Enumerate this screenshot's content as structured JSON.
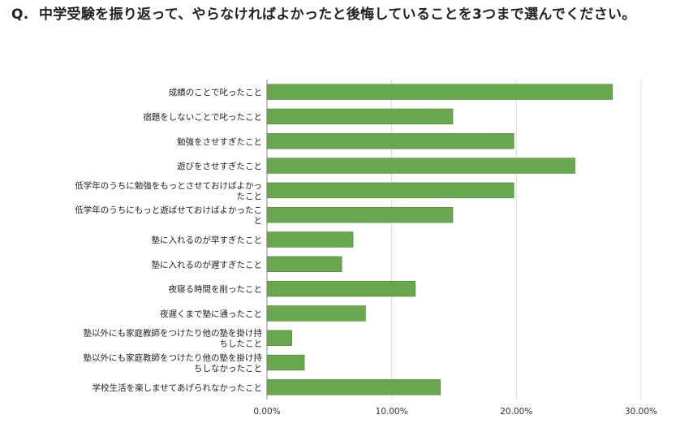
{
  "question": {
    "prefix": "Q.",
    "text": "中学受験を振り返って、やらなければよかったと後悔していることを3つまで選んでください。"
  },
  "chart_data": {
    "type": "bar",
    "orientation": "horizontal",
    "bar_color": "#6aa84f",
    "grid": true,
    "xlim": [
      0,
      0.3
    ],
    "x_ticks": [
      "0.00%",
      "10.00%",
      "20.00%",
      "30.00%"
    ],
    "categories": [
      [
        "成績のことで叱ったこと"
      ],
      [
        "宿題をしないことで叱ったこと"
      ],
      [
        "勉強をさせすぎたこと"
      ],
      [
        "遊びをさせすぎたこと"
      ],
      [
        "低学年のうちに勉強をもっとさせておけばよかっ",
        "たこと"
      ],
      [
        "低学年のうちにもっと遊ばせておけばよかったこ",
        "と"
      ],
      [
        "塾に入れるのが早すぎたこと"
      ],
      [
        "塾に入れるのが遅すぎたこと"
      ],
      [
        "夜寝る時間を削ったこと"
      ],
      [
        "夜遅くまで塾に通ったこと"
      ],
      [
        "塾以外にも家庭教師をつけたり他の塾を掛け持",
        "ちしたこと"
      ],
      [
        "塾以外にも家庭教師をつけたり他の塾を掛け持",
        "ちしなかったこと"
      ],
      [
        "学校生活を楽しませてあげられなかったこと"
      ]
    ],
    "values": [
      0.277,
      0.149,
      0.198,
      0.247,
      0.198,
      0.149,
      0.069,
      0.06,
      0.119,
      0.079,
      0.02,
      0.03,
      0.139
    ]
  }
}
